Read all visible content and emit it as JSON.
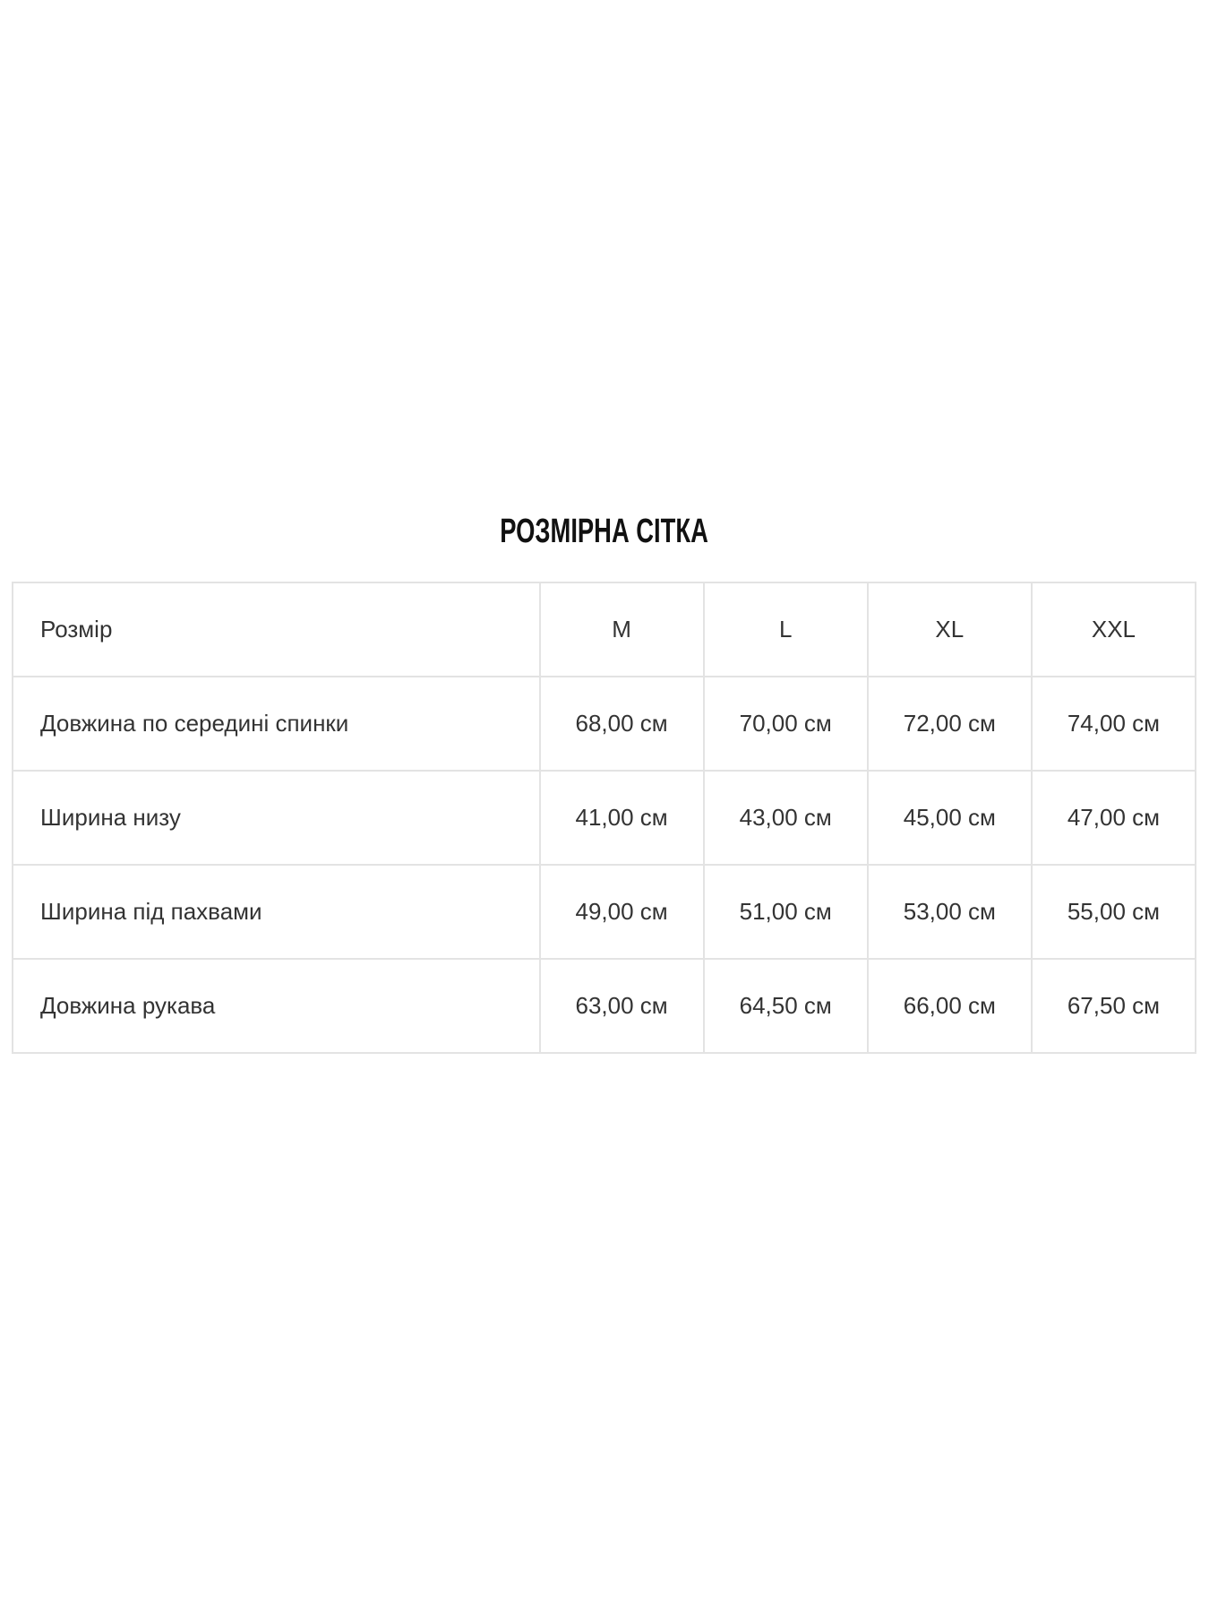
{
  "title": "РОЗМІРНА СІТКА",
  "table": {
    "header": {
      "label": "Розмір",
      "sizes": [
        "M",
        "L",
        "XL",
        "XXL"
      ]
    },
    "rows": [
      {
        "label": "Довжина по середині спинки",
        "values": [
          "68,00 см",
          "70,00 см",
          "72,00 см",
          "74,00 см"
        ]
      },
      {
        "label": "Ширина низу",
        "values": [
          "41,00 см",
          "43,00 см",
          "45,00 см",
          "47,00 см"
        ]
      },
      {
        "label": "Ширина під пахвами",
        "values": [
          "49,00 см",
          "51,00 см",
          "53,00 см",
          "55,00 см"
        ]
      },
      {
        "label": "Довжина рукава",
        "values": [
          "63,00 см",
          "64,50 см",
          "66,00 см",
          "67,50 см"
        ]
      }
    ]
  }
}
